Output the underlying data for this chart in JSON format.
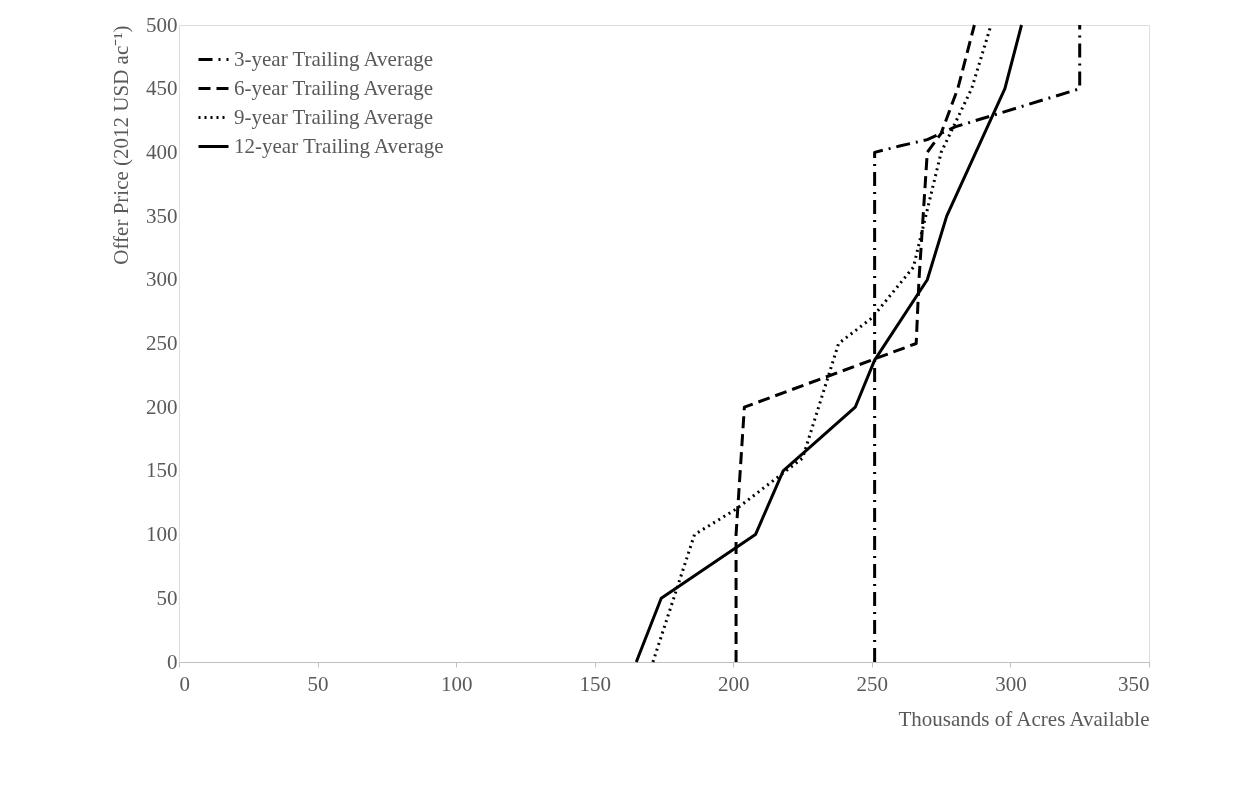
{
  "chart_data": {
    "type": "line",
    "xlabel": "Thousands of Acres Available",
    "ylabel": "Offer Price (2012 USD ac⁻¹)",
    "xlim": [
      0,
      350
    ],
    "xticks": [
      0,
      50,
      100,
      150,
      200,
      250,
      300,
      350
    ],
    "ylim": [
      0,
      500
    ],
    "yticks": [
      0,
      50,
      100,
      150,
      200,
      250,
      300,
      350,
      400,
      450,
      500
    ],
    "grid": false,
    "legend": "top left",
    "marker": "none",
    "series": [
      {
        "name": "3-year Trailing Average",
        "color": "#000000",
        "line_style": "dashdot",
        "x": [
          251,
          251,
          260,
          270,
          280,
          325,
          325
        ],
        "values": [
          0,
          400,
          405,
          410,
          420,
          450,
          500
        ]
      },
      {
        "name": "6-year Trailing Average",
        "color": "#000000",
        "line_style": "dashed",
        "x": [
          201,
          201,
          204,
          266,
          267,
          270,
          275,
          281,
          287
        ],
        "values": [
          0,
          100,
          200,
          250,
          300,
          400,
          415,
          450,
          500
        ]
      },
      {
        "name": "9-year Trailing Average",
        "color": "#000000",
        "line_style": "dotted",
        "x": [
          171,
          186,
          201,
          225,
          238,
          250,
          265,
          275,
          286,
          293
        ],
        "values": [
          0,
          100,
          120,
          160,
          250,
          270,
          310,
          400,
          450,
          500
        ]
      },
      {
        "name": "12-year Trailing Average",
        "color": "#000000",
        "line_style": "solid",
        "x": [
          165,
          174,
          208,
          218,
          244,
          251,
          270,
          277,
          298,
          304
        ],
        "values": [
          0,
          50,
          100,
          150,
          200,
          237,
          300,
          350,
          450,
          500
        ]
      }
    ]
  }
}
